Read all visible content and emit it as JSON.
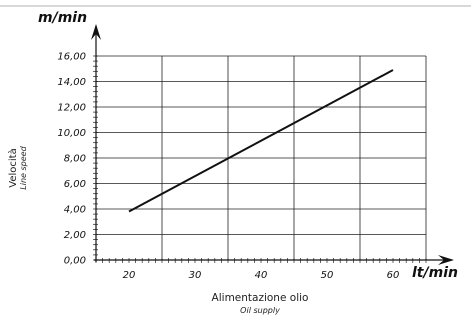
{
  "chart_data": {
    "type": "line",
    "yunit": "m/min",
    "xunit": "lt/min",
    "xlabel": "Alimentazione olio",
    "xlabel_sub": "Oil supply",
    "ylabel": "Velocità",
    "ylabel_sub": "Line speed",
    "xlim": [
      15,
      65
    ],
    "ylim": [
      0,
      16
    ],
    "x_ticks": [
      "20",
      "30",
      "40",
      "50",
      "60"
    ],
    "y_ticks": [
      "0,00",
      "2,00",
      "4,00",
      "6,00",
      "8,00",
      "10,00",
      "12,00",
      "14,00",
      "16,00"
    ],
    "x_grid": [
      15,
      25,
      35,
      45,
      55,
      65
    ],
    "y_grid": [
      0,
      2,
      4,
      6,
      8,
      10,
      12,
      14,
      16
    ],
    "grid": true,
    "series": [
      {
        "x": [
          20,
          60
        ],
        "y": [
          3.8,
          14.9
        ]
      }
    ]
  }
}
